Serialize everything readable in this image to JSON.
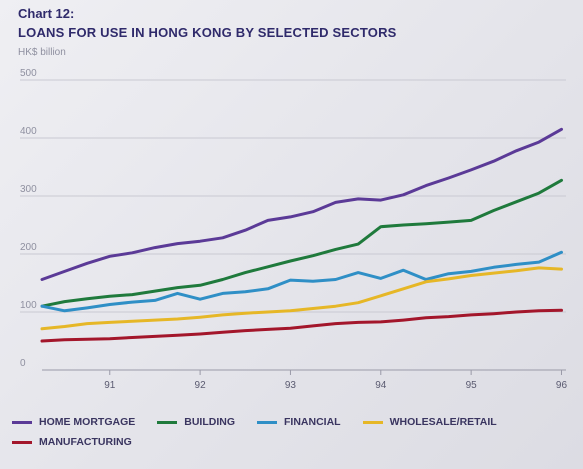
{
  "chart_number": "Chart 12:",
  "chart_data": {
    "type": "line",
    "title": "LOANS FOR USE IN HONG KONG BY SELECTED SECTORS",
    "ylabel": "HK$ billion",
    "xlabel": "",
    "ylim": [
      0,
      500
    ],
    "yticks": [
      "0",
      "100",
      "200",
      "300",
      "400",
      "500"
    ],
    "xticks": [
      "91",
      "92",
      "93",
      "94",
      "95",
      "96"
    ],
    "x": [
      90.25,
      90.5,
      90.75,
      91,
      91.25,
      91.5,
      91.75,
      92,
      92.25,
      92.5,
      92.75,
      93,
      93.25,
      93.5,
      93.75,
      94,
      94.25,
      94.5,
      94.75,
      95,
      95.25,
      95.5,
      95.75,
      96
    ],
    "grid": true,
    "legend_position": "bottom",
    "series": [
      {
        "name": "HOME MORTGAGE",
        "color": "#5b3a97",
        "values": [
          156,
          170,
          184,
          196,
          202,
          211,
          218,
          222,
          228,
          241,
          258,
          264,
          273,
          289,
          295,
          293,
          302,
          318,
          331,
          345,
          360,
          378,
          393,
          415
        ]
      },
      {
        "name": "BUILDING",
        "color": "#1f7a3c",
        "values": [
          110,
          118,
          123,
          127,
          130,
          136,
          142,
          146,
          156,
          168,
          178,
          188,
          197,
          208,
          217,
          247,
          250,
          252,
          255,
          258,
          275,
          290,
          305,
          327
        ]
      },
      {
        "name": "FINANCIAL",
        "color": "#2f8fc6",
        "values": [
          110,
          102,
          107,
          113,
          117,
          120,
          132,
          122,
          132,
          135,
          140,
          155,
          153,
          156,
          168,
          158,
          172,
          156,
          166,
          170,
          177,
          182,
          186,
          203
        ]
      },
      {
        "name": "WHOLESALE/RETAIL",
        "color": "#e6b727",
        "values": [
          71,
          75,
          80,
          82,
          84,
          86,
          88,
          91,
          95,
          98,
          100,
          102,
          106,
          110,
          116,
          128,
          140,
          152,
          157,
          163,
          167,
          171,
          176,
          174
        ]
      },
      {
        "name": "MANUFACTURING",
        "color": "#a3162b",
        "values": [
          50,
          52,
          53,
          54,
          56,
          58,
          60,
          62,
          65,
          68,
          70,
          72,
          76,
          80,
          82,
          83,
          86,
          90,
          92,
          95,
          97,
          100,
          102,
          103
        ]
      }
    ]
  }
}
